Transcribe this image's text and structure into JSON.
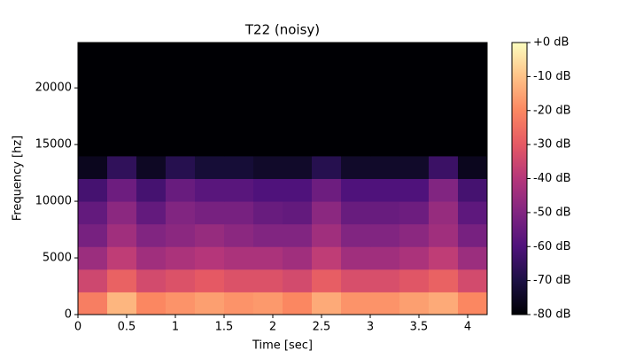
{
  "chart_data": {
    "type": "heatmap",
    "title": "T22 (noisy)",
    "x_label": "Time [sec]",
    "y_label": "Frequency [hz]",
    "colormap": "magma",
    "xbins": [
      0,
      0.3,
      0.6,
      0.9,
      1.2,
      1.5,
      1.8,
      2.1,
      2.4,
      2.7,
      3.0,
      3.3,
      3.6,
      3.9,
      4.2
    ],
    "ybins": [
      0,
      2000,
      4000,
      6000,
      8000,
      10000,
      12000,
      14000,
      16000,
      18000,
      20000,
      22000,
      24000
    ],
    "values": [
      [
        -22,
        -12,
        -20,
        -18,
        -16,
        -18,
        -17,
        -20,
        -14,
        -18,
        -18,
        -16,
        -14,
        -20
      ],
      [
        -35,
        -28,
        -34,
        -32,
        -30,
        -32,
        -32,
        -34,
        -29,
        -33,
        -33,
        -31,
        -28,
        -34
      ],
      [
        -45,
        -38,
        -44,
        -42,
        -40,
        -42,
        -42,
        -44,
        -38,
        -44,
        -44,
        -42,
        -38,
        -45
      ],
      [
        -52,
        -44,
        -50,
        -48,
        -46,
        -48,
        -50,
        -50,
        -44,
        -50,
        -50,
        -48,
        -44,
        -52
      ],
      [
        -56,
        -48,
        -56,
        -50,
        -52,
        -52,
        -55,
        -56,
        -48,
        -55,
        -55,
        -54,
        -46,
        -57
      ],
      [
        -62,
        -54,
        -62,
        -55,
        -58,
        -58,
        -60,
        -60,
        -54,
        -60,
        -60,
        -60,
        -50,
        -62
      ],
      [
        -76,
        -66,
        -75,
        -68,
        -72,
        -72,
        -74,
        -74,
        -68,
        -74,
        -74,
        -74,
        -64,
        -76
      ],
      [
        -80,
        -80,
        -80,
        -80,
        -80,
        -80,
        -80,
        -80,
        -80,
        -80,
        -80,
        -80,
        -80,
        -80
      ],
      [
        -80,
        -80,
        -80,
        -80,
        -80,
        -80,
        -80,
        -80,
        -80,
        -80,
        -80,
        -80,
        -80,
        -80
      ],
      [
        -80,
        -80,
        -80,
        -80,
        -80,
        -80,
        -80,
        -80,
        -80,
        -80,
        -80,
        -80,
        -80,
        -80
      ],
      [
        -80,
        -80,
        -80,
        -80,
        -80,
        -80,
        -80,
        -80,
        -80,
        -80,
        -80,
        -80,
        -80,
        -80
      ],
      [
        -80,
        -80,
        -80,
        -80,
        -80,
        -80,
        -80,
        -80,
        -80,
        -80,
        -80,
        -80,
        -80,
        -80
      ]
    ],
    "xlim": [
      0,
      4.2
    ],
    "xticks": [
      0,
      0.5,
      1,
      1.5,
      2,
      2.5,
      3,
      3.5,
      4
    ],
    "ylim": [
      0,
      24000
    ],
    "yticks": [
      0,
      5000,
      10000,
      15000,
      20000
    ],
    "clim": [
      -80,
      0
    ],
    "cticks": [
      {
        "value": 0,
        "label": "+0 dB"
      },
      {
        "value": -10,
        "label": "-10 dB"
      },
      {
        "value": -20,
        "label": "-20 dB"
      },
      {
        "value": -30,
        "label": "-30 dB"
      },
      {
        "value": -40,
        "label": "-40 dB"
      },
      {
        "value": -50,
        "label": "-50 dB"
      },
      {
        "value": -60,
        "label": "-60 dB"
      },
      {
        "value": -70,
        "label": "-70 dB"
      },
      {
        "value": -80,
        "label": "-80 dB"
      }
    ]
  }
}
